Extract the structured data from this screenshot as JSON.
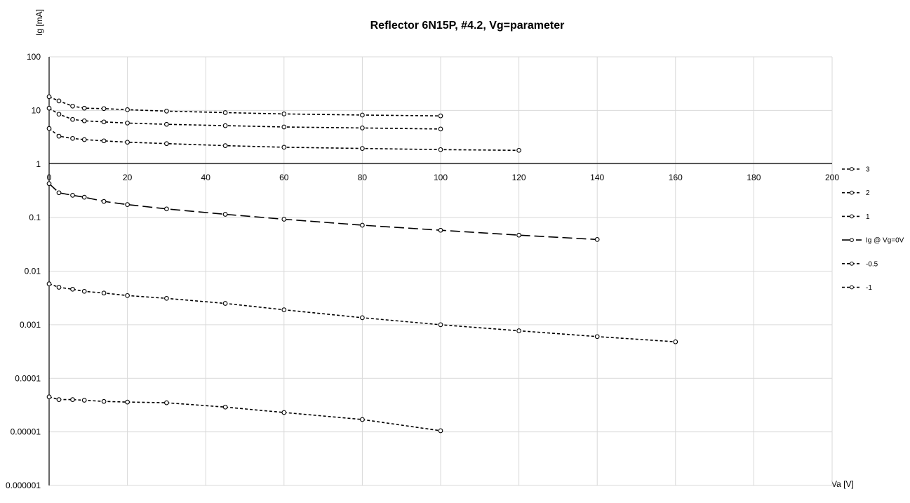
{
  "chart_data": {
    "type": "scatter",
    "title": "Reflector 6N15P, #4.2, Vg=parameter",
    "xlabel": "Va [V]",
    "ylabel": "Ig [mA]",
    "xlim": [
      0,
      200
    ],
    "ylim": [
      1e-06,
      100
    ],
    "yscale": "log",
    "x_ticks": [
      "0",
      "20",
      "40",
      "60",
      "80",
      "100",
      "120",
      "140",
      "160",
      "180",
      "200"
    ],
    "y_ticks": [
      "100",
      "10",
      "1",
      "0.1",
      "0.01",
      "0.001",
      "0.0001",
      "0.00001",
      "0.000001"
    ],
    "grid": true,
    "legend_position": "right",
    "series": [
      {
        "name": "3",
        "x": [
          0,
          2.5,
          6,
          9,
          14,
          20,
          30,
          45,
          60,
          80,
          100
        ],
        "y": [
          18,
          15,
          12,
          11,
          10.8,
          10.3,
          9.7,
          9.1,
          8.6,
          8.2,
          7.9
        ]
      },
      {
        "name": "2",
        "x": [
          0,
          2.5,
          6,
          9,
          14,
          20,
          30,
          45,
          60,
          80,
          100
        ],
        "y": [
          11,
          8.5,
          6.8,
          6.4,
          6.1,
          5.8,
          5.5,
          5.2,
          4.9,
          4.7,
          4.5
        ]
      },
      {
        "name": "1",
        "x": [
          0,
          2.5,
          6,
          9,
          14,
          20,
          30,
          45,
          60,
          80,
          100,
          120
        ],
        "y": [
          4.6,
          3.3,
          3.0,
          2.85,
          2.7,
          2.55,
          2.4,
          2.2,
          2.05,
          1.95,
          1.85,
          1.8
        ]
      },
      {
        "name": "Ig @ Vg=0V",
        "x": [
          0,
          2.5,
          6,
          9,
          14,
          20,
          30,
          45,
          60,
          80,
          100,
          120,
          140
        ],
        "y": [
          0.43,
          0.29,
          0.26,
          0.24,
          0.2,
          0.175,
          0.145,
          0.115,
          0.093,
          0.072,
          0.058,
          0.047,
          0.039
        ]
      },
      {
        "name": "-0.5",
        "x": [
          0,
          2.5,
          6,
          9,
          14,
          20,
          30,
          45,
          60,
          80,
          100,
          120,
          140,
          160
        ],
        "y": [
          0.0058,
          0.005,
          0.0046,
          0.0042,
          0.0039,
          0.0035,
          0.0031,
          0.0025,
          0.0019,
          0.00135,
          0.001,
          0.00077,
          0.0006,
          0.00048
        ]
      },
      {
        "name": "-1",
        "x": [
          0,
          2.5,
          6,
          9,
          14,
          20,
          30,
          45,
          60,
          80,
          100
        ],
        "y": [
          4.5e-05,
          4e-05,
          4e-05,
          3.9e-05,
          3.7e-05,
          3.6e-05,
          3.5e-05,
          2.9e-05,
          2.3e-05,
          1.7e-05,
          1.05e-05
        ]
      }
    ]
  },
  "styles": {
    "line_color": "#000000",
    "marker_fill": "#ffffff",
    "grid_color": "#d9d9d9"
  }
}
